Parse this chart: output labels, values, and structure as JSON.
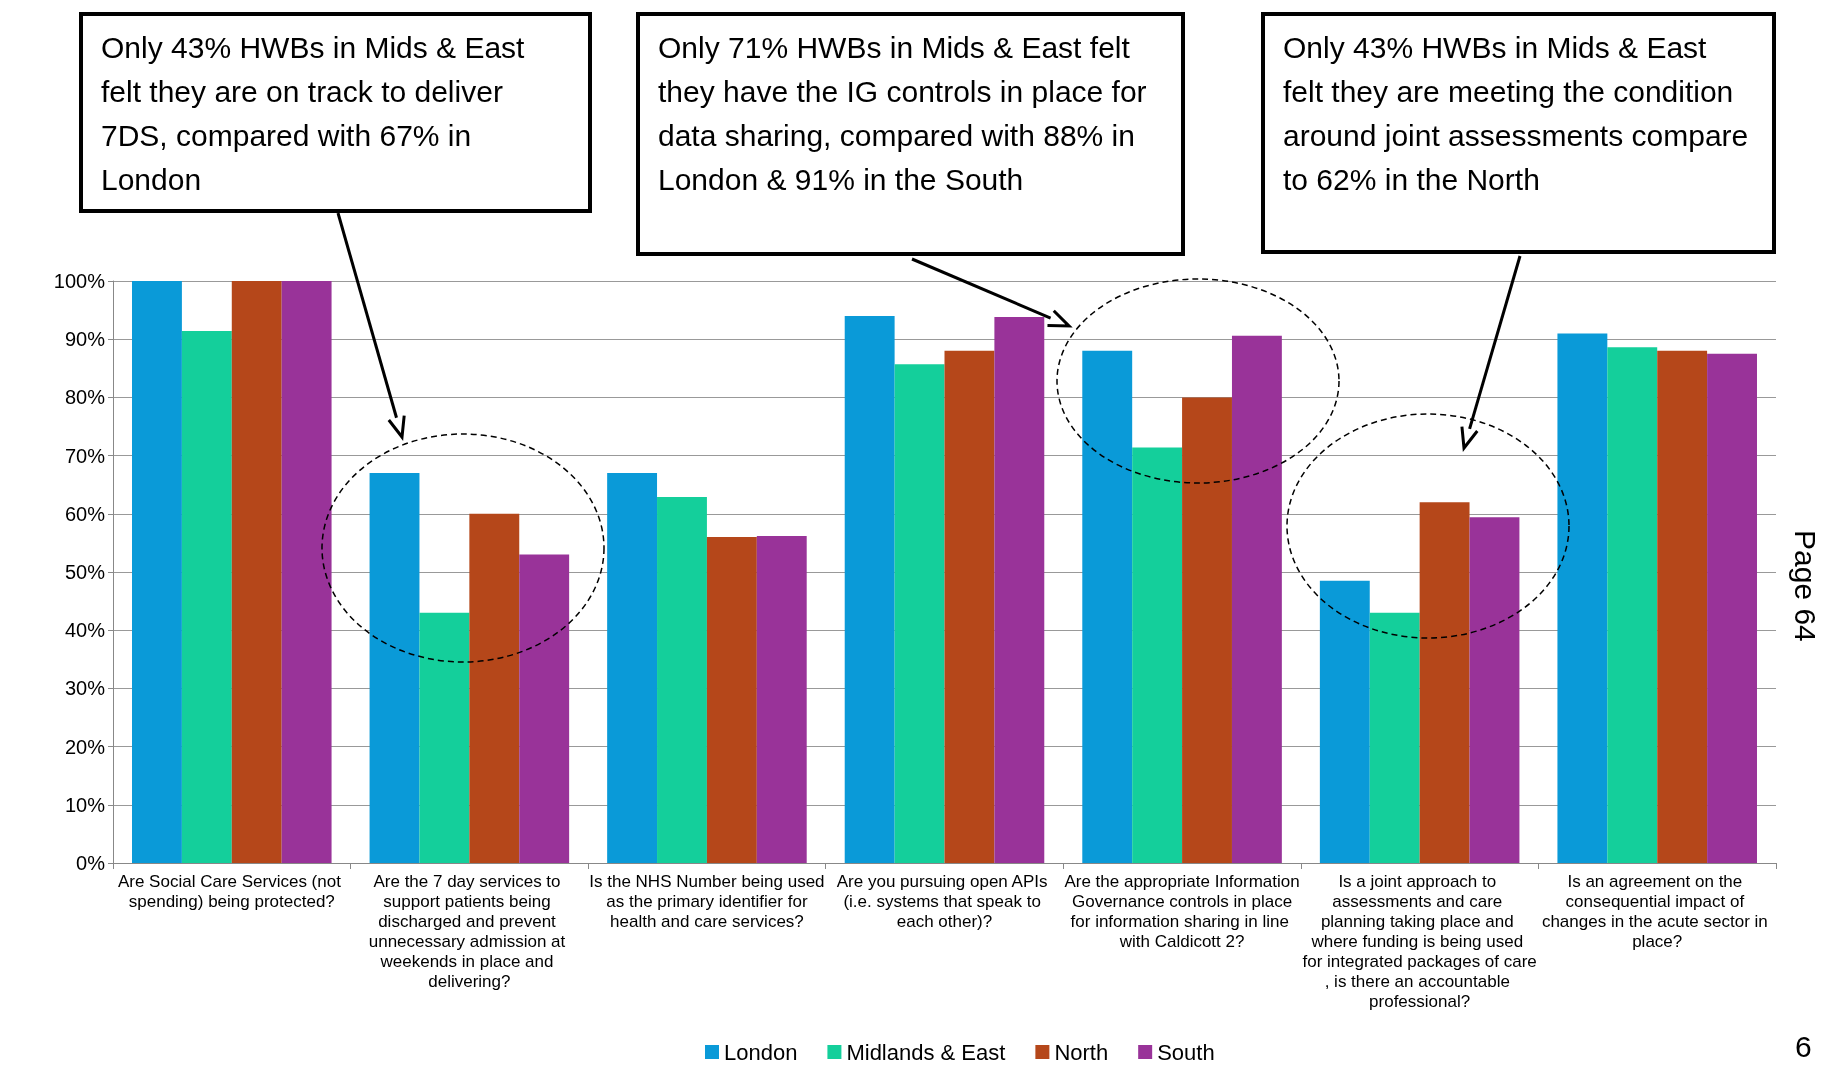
{
  "chart_data": {
    "type": "bar",
    "categories": [
      "Are Social Care Services (not spending) being protected?",
      "Are the 7 day services to support patients being discharged and prevent unnecessary admission at weekends in place and delivering?",
      "Is the NHS Number being used as the primary identifier for health and care services?",
      "Are you pursuing open APIs (i.e. systems that speak to each other)?",
      "Are the appropriate Information Governance controls in place for information sharing in line with Caldicott 2?",
      "Is a joint approach to assessments and care planning taking place and where funding is being used for integrated packages of care, is there an accountable professional?",
      "Is an agreement on the consequential impact of changes in the acute sector in place?"
    ],
    "series": [
      {
        "name": "London",
        "color": "#0a9ad8",
        "values": [
          100,
          67,
          67,
          94,
          88,
          48.5,
          91
        ]
      },
      {
        "name": "Midlands & East",
        "color": "#14cf9b",
        "values": [
          91.4,
          43,
          62.9,
          85.7,
          71.4,
          43,
          88.6
        ]
      },
      {
        "name": "North",
        "color": "#b5471a",
        "values": [
          100,
          60,
          56,
          88,
          80,
          62,
          88
        ]
      },
      {
        "name": "South",
        "color": "#993399",
        "values": [
          100,
          53,
          56.2,
          93.8,
          90.6,
          59.4,
          87.5
        ]
      }
    ],
    "ylim": [
      0,
      100
    ],
    "yticks": [
      {
        "value": 0,
        "label": "0%"
      },
      {
        "value": 10,
        "label": "10%"
      },
      {
        "value": 20,
        "label": "20%"
      },
      {
        "value": 30,
        "label": "30%"
      },
      {
        "value": 40,
        "label": "40%"
      },
      {
        "value": 50,
        "label": "50%"
      },
      {
        "value": 60,
        "label": "60%"
      },
      {
        "value": 70,
        "label": "70%"
      },
      {
        "value": 80,
        "label": "80%"
      },
      {
        "value": 90,
        "label": "90%"
      },
      {
        "value": 100,
        "label": "100%"
      }
    ],
    "grid": "y",
    "legend": "bottom",
    "annotations": [
      "Only 43% HWBs in Mids & East felt they are on track to deliver 7DS, compared with 67% in London",
      "Only 71% HWBs in Mids & East felt they have the IG controls in place for data sharing, compared with 88% in London & 91% in the South",
      "Only 43% HWBs in Mids & East felt they are meeting the condition around joint assessments compare  to 62% in the North",
      "Page 64",
      "6"
    ]
  }
}
